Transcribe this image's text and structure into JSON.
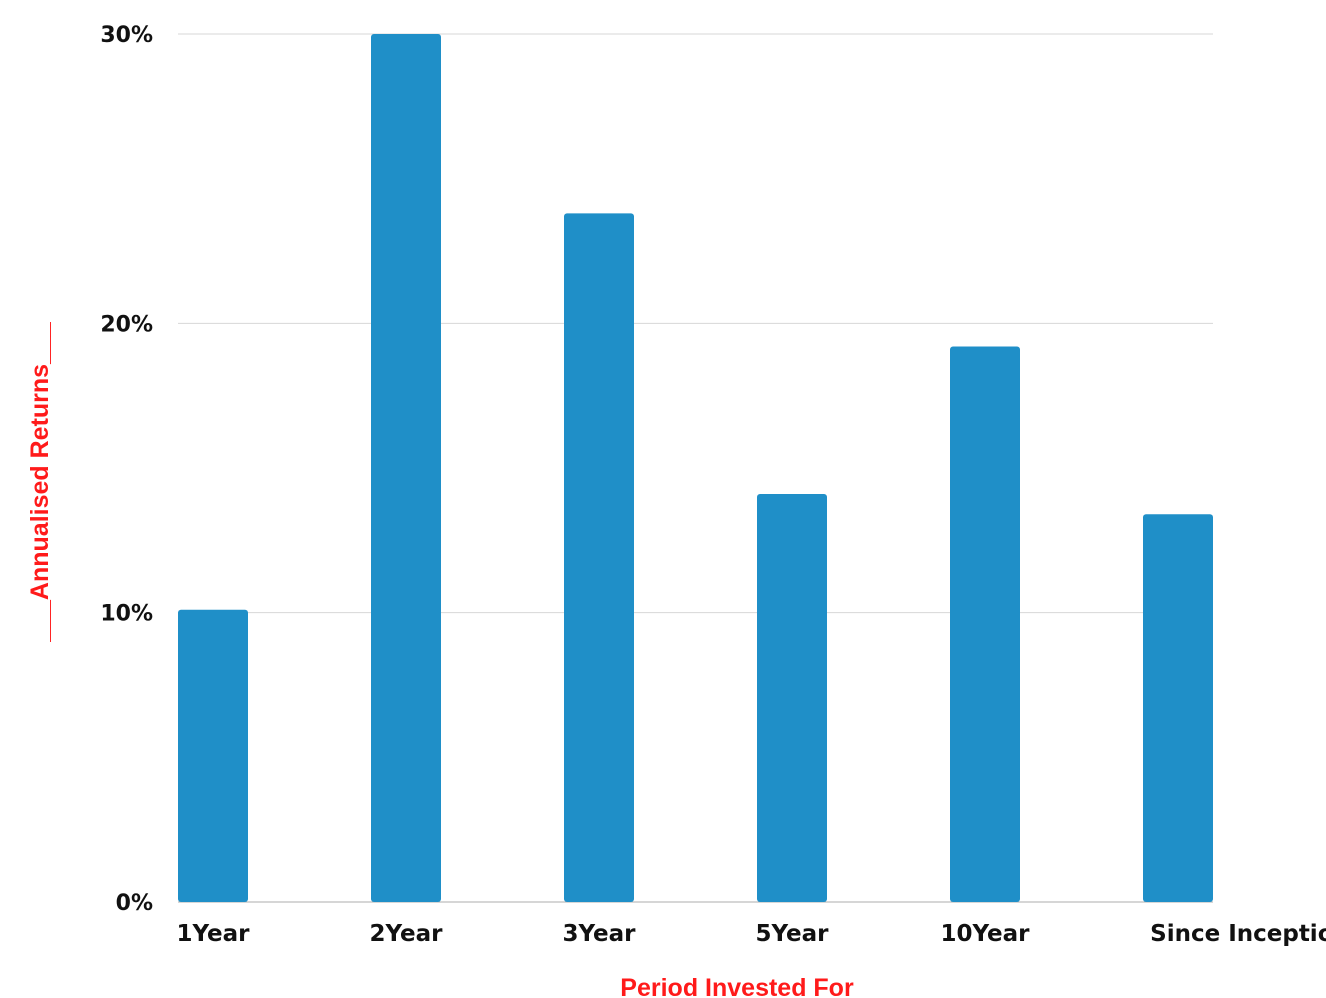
{
  "chart_data": {
    "type": "bar",
    "categories": [
      "1Year",
      "2Year",
      "3Year",
      "5Year",
      "10Year",
      "Since Inception"
    ],
    "series": [
      {
        "values": [
          10.1,
          30.0,
          23.8,
          14.1,
          19.2,
          13.4
        ],
        "color": "#1f8fc8"
      }
    ],
    "xlabel": "Period Invested For",
    "ylabel": "___Annualised Returns___",
    "ylim": [
      0,
      30
    ],
    "yticks": [
      0,
      10,
      20,
      30
    ],
    "ytick_labels": [
      "0%",
      "10%",
      "20%",
      "30%"
    ],
    "grid": true,
    "axis_title_color": "#ff1a1a"
  }
}
